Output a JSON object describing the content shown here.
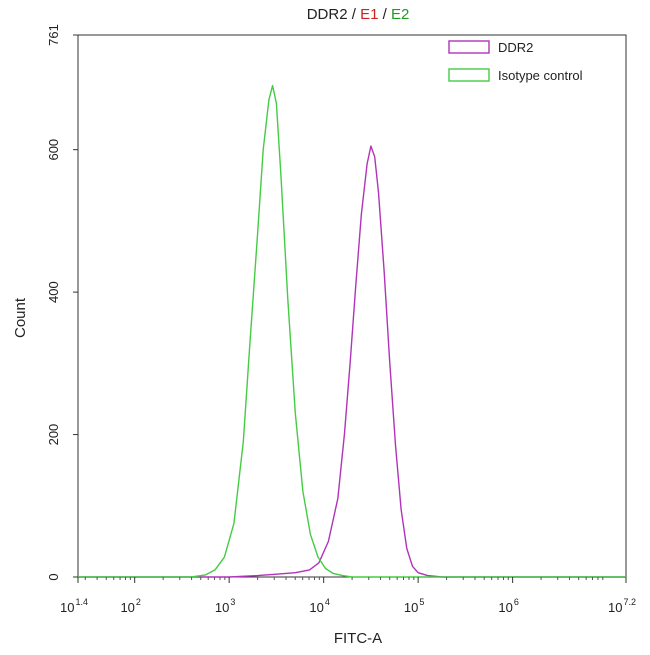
{
  "chart_data": {
    "type": "histogram",
    "title_parts": [
      {
        "text": "DDR2",
        "color": "#222222"
      },
      {
        "text": " / ",
        "color": "#222222"
      },
      {
        "text": "E1",
        "color": "#cc2222"
      },
      {
        "text": " / ",
        "color": "#222222"
      },
      {
        "text": "E2",
        "color": "#229922"
      }
    ],
    "xlabel": "FITC-A",
    "ylabel": "Count",
    "x_scale": "log10",
    "xlim_log10": [
      1.4,
      7.2
    ],
    "ylim": [
      0,
      761
    ],
    "x_ticks": [
      {
        "base": "10",
        "exp": "1.4",
        "value": 1.4
      },
      {
        "base": "10",
        "exp": "2",
        "value": 2
      },
      {
        "base": "10",
        "exp": "3",
        "value": 3
      },
      {
        "base": "10",
        "exp": "4",
        "value": 4
      },
      {
        "base": "10",
        "exp": "5",
        "value": 5
      },
      {
        "base": "10",
        "exp": "6",
        "value": 6
      },
      {
        "base": "10",
        "exp": "7.2",
        "value": 7.2
      }
    ],
    "y_ticks": [
      {
        "label": "0",
        "value": 0
      },
      {
        "label": "200",
        "value": 200
      },
      {
        "label": "400",
        "value": 400
      },
      {
        "label": "600",
        "value": 600
      },
      {
        "label": "761",
        "value": 761
      }
    ],
    "legend_position": "top-right",
    "series": [
      {
        "name": "DDR2",
        "color": "#b033b8",
        "x_log10": [
          1.4,
          3.0,
          3.3,
          3.5,
          3.7,
          3.85,
          3.95,
          4.05,
          4.15,
          4.22,
          4.28,
          4.34,
          4.4,
          4.46,
          4.5,
          4.54,
          4.58,
          4.64,
          4.7,
          4.76,
          4.82,
          4.88,
          4.94,
          5.0,
          5.1,
          5.25,
          5.5,
          7.2
        ],
        "y": [
          0,
          0,
          2,
          4,
          6,
          10,
          20,
          50,
          110,
          200,
          300,
          410,
          510,
          580,
          605,
          590,
          540,
          430,
          300,
          185,
          95,
          40,
          15,
          6,
          2,
          0,
          0,
          0
        ]
      },
      {
        "name": "Isotype control",
        "color": "#44cc44",
        "x_log10": [
          1.4,
          2.6,
          2.75,
          2.85,
          2.95,
          3.05,
          3.15,
          3.22,
          3.3,
          3.36,
          3.42,
          3.46,
          3.5,
          3.55,
          3.62,
          3.7,
          3.78,
          3.86,
          3.94,
          4.02,
          4.1,
          4.2,
          4.3,
          4.45,
          7.2
        ],
        "y": [
          0,
          0,
          3,
          10,
          28,
          75,
          190,
          330,
          480,
          600,
          670,
          690,
          665,
          560,
          390,
          230,
          120,
          60,
          28,
          12,
          5,
          2,
          0,
          0,
          0
        ]
      }
    ]
  }
}
